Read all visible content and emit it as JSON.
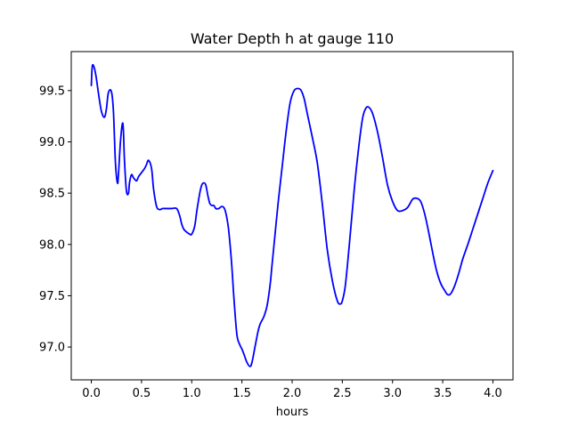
{
  "chart_data": {
    "type": "line",
    "title": "Water Depth h at gauge 110",
    "xlabel": "hours",
    "ylabel": "",
    "xlim": [
      -0.2,
      4.2
    ],
    "ylim": [
      96.68,
      99.88
    ],
    "grid": false,
    "legend": "none",
    "x_ticks": [
      0.0,
      0.5,
      1.0,
      1.5,
      2.0,
      2.5,
      3.0,
      3.5,
      4.0
    ],
    "x_tick_labels": [
      "0.0",
      "0.5",
      "1.0",
      "1.5",
      "2.0",
      "2.5",
      "3.0",
      "3.5",
      "4.0"
    ],
    "y_ticks": [
      97.0,
      97.5,
      98.0,
      98.5,
      99.0,
      99.5
    ],
    "y_tick_labels": [
      "97.0",
      "97.5",
      "98.0",
      "98.5",
      "99.0",
      "99.5"
    ],
    "series": [
      {
        "color": "#0000ff",
        "x": [
          0.0,
          0.01,
          0.03,
          0.05,
          0.07,
          0.1,
          0.13,
          0.15,
          0.17,
          0.2,
          0.22,
          0.24,
          0.26,
          0.27,
          0.29,
          0.31,
          0.32,
          0.33,
          0.35,
          0.37,
          0.38,
          0.4,
          0.42,
          0.45,
          0.47,
          0.5,
          0.53,
          0.55,
          0.57,
          0.6,
          0.62,
          0.65,
          0.68,
          0.71,
          0.73,
          0.75,
          0.8,
          0.85,
          0.88,
          0.9,
          0.92,
          0.95,
          0.98,
          1.0,
          1.03,
          1.05,
          1.08,
          1.1,
          1.12,
          1.14,
          1.16,
          1.18,
          1.2,
          1.22,
          1.24,
          1.27,
          1.3,
          1.33,
          1.36,
          1.38,
          1.4,
          1.42,
          1.45,
          1.48,
          1.5,
          1.52,
          1.55,
          1.58,
          1.6,
          1.63,
          1.66,
          1.68,
          1.7,
          1.72,
          1.75,
          1.78,
          1.8,
          1.83,
          1.86,
          1.9,
          1.94,
          1.98,
          2.02,
          2.06,
          2.09,
          2.12,
          2.15,
          2.2,
          2.25,
          2.3,
          2.35,
          2.4,
          2.45,
          2.48,
          2.5,
          2.53,
          2.57,
          2.62,
          2.66,
          2.7,
          2.73,
          2.76,
          2.8,
          2.85,
          2.9,
          2.95,
          3.0,
          3.05,
          3.1,
          3.15,
          3.2,
          3.24,
          3.28,
          3.32,
          3.36,
          3.4,
          3.44,
          3.48,
          3.52,
          3.55,
          3.58,
          3.62,
          3.66,
          3.7,
          3.75,
          3.8,
          3.85,
          3.9,
          3.95,
          4.0
        ],
        "y": [
          99.55,
          99.74,
          99.72,
          99.62,
          99.48,
          99.3,
          99.24,
          99.32,
          99.48,
          99.49,
          99.3,
          98.8,
          98.6,
          98.68,
          99.0,
          99.18,
          99.1,
          98.82,
          98.52,
          98.5,
          98.6,
          98.68,
          98.65,
          98.62,
          98.66,
          98.7,
          98.74,
          98.78,
          98.82,
          98.74,
          98.54,
          98.37,
          98.34,
          98.35,
          98.35,
          98.35,
          98.35,
          98.35,
          98.28,
          98.2,
          98.15,
          98.12,
          98.1,
          98.1,
          98.18,
          98.32,
          98.5,
          98.58,
          98.6,
          98.58,
          98.48,
          98.4,
          98.38,
          98.38,
          98.35,
          98.35,
          98.37,
          98.34,
          98.2,
          98.02,
          97.78,
          97.48,
          97.12,
          97.02,
          96.98,
          96.93,
          96.85,
          96.81,
          96.85,
          97.0,
          97.15,
          97.22,
          97.26,
          97.3,
          97.4,
          97.6,
          97.8,
          98.1,
          98.4,
          98.75,
          99.1,
          99.38,
          99.5,
          99.52,
          99.5,
          99.42,
          99.28,
          99.05,
          98.8,
          98.4,
          97.95,
          97.65,
          97.45,
          97.42,
          97.45,
          97.6,
          98.0,
          98.55,
          98.92,
          99.22,
          99.32,
          99.34,
          99.28,
          99.1,
          98.85,
          98.58,
          98.42,
          98.33,
          98.33,
          98.36,
          98.44,
          98.45,
          98.42,
          98.3,
          98.12,
          97.92,
          97.74,
          97.62,
          97.55,
          97.51,
          97.52,
          97.6,
          97.72,
          97.86,
          98.0,
          98.15,
          98.3,
          98.45,
          98.6,
          98.72
        ]
      }
    ]
  }
}
